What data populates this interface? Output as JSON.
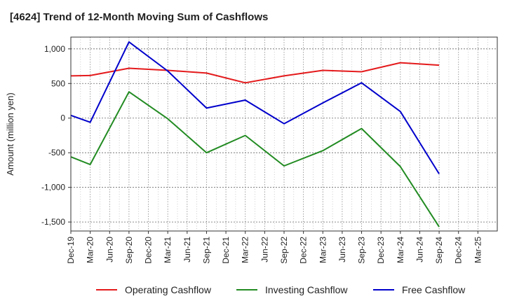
{
  "title": "[4624]  Trend of 12-Month Moving Sum of Cashflows",
  "chart_data": {
    "type": "line",
    "title": "[4624]  Trend of 12-Month Moving Sum of Cashflows",
    "xlabel": "",
    "ylabel": "Amount (million yen)",
    "categories": [
      "Dec-19",
      "Mar-20",
      "Jun-20",
      "Sep-20",
      "Dec-20",
      "Mar-21",
      "Jun-21",
      "Sep-21",
      "Dec-21",
      "Mar-22",
      "Jun-22",
      "Sep-22",
      "Dec-22",
      "Mar-23",
      "Jun-23",
      "Sep-23",
      "Dec-23",
      "Mar-24",
      "Jun-24",
      "Sep-24",
      "Dec-24",
      "Mar-25"
    ],
    "y_ticks": [
      1000,
      500,
      0,
      -500,
      -1000,
      -1500
    ],
    "y_tick_labels": [
      "1,000",
      "500",
      "0",
      "-500",
      "-1,000",
      "-1,500"
    ],
    "ylim": [
      -1630,
      1170
    ],
    "grid": true,
    "legend_position": "bottom",
    "series": [
      {
        "name": "Operating Cashflow",
        "color": "#e41a1c",
        "points": [
          [
            "Dec-19",
            610
          ],
          [
            "Mar-20",
            615
          ],
          [
            "Sep-20",
            720
          ],
          [
            "Mar-21",
            690
          ],
          [
            "Sep-21",
            650
          ],
          [
            "Mar-22",
            510
          ],
          [
            "Sep-22",
            610
          ],
          [
            "Mar-23",
            690
          ],
          [
            "Sep-23",
            670
          ],
          [
            "Mar-24",
            800
          ],
          [
            "Sep-24",
            765
          ]
        ]
      },
      {
        "name": "Investing Cashflow",
        "color": "#228b22",
        "points": [
          [
            "Dec-19",
            -560
          ],
          [
            "Mar-20",
            -670
          ],
          [
            "Sep-20",
            380
          ],
          [
            "Mar-21",
            -10
          ],
          [
            "Sep-21",
            -500
          ],
          [
            "Mar-22",
            -250
          ],
          [
            "Sep-22",
            -690
          ],
          [
            "Mar-23",
            -470
          ],
          [
            "Sep-23",
            -150
          ],
          [
            "Mar-24",
            -700
          ],
          [
            "Sep-24",
            -1570
          ]
        ]
      },
      {
        "name": "Free Cashflow",
        "color": "#0000cc",
        "points": [
          [
            "Dec-19",
            40
          ],
          [
            "Mar-20",
            -60
          ],
          [
            "Sep-20",
            1100
          ],
          [
            "Mar-21",
            680
          ],
          [
            "Sep-21",
            145
          ],
          [
            "Mar-22",
            260
          ],
          [
            "Sep-22",
            -80
          ],
          [
            "Mar-23",
            220
          ],
          [
            "Sep-23",
            510
          ],
          [
            "Mar-24",
            95
          ],
          [
            "Sep-24",
            -805
          ]
        ]
      }
    ]
  }
}
